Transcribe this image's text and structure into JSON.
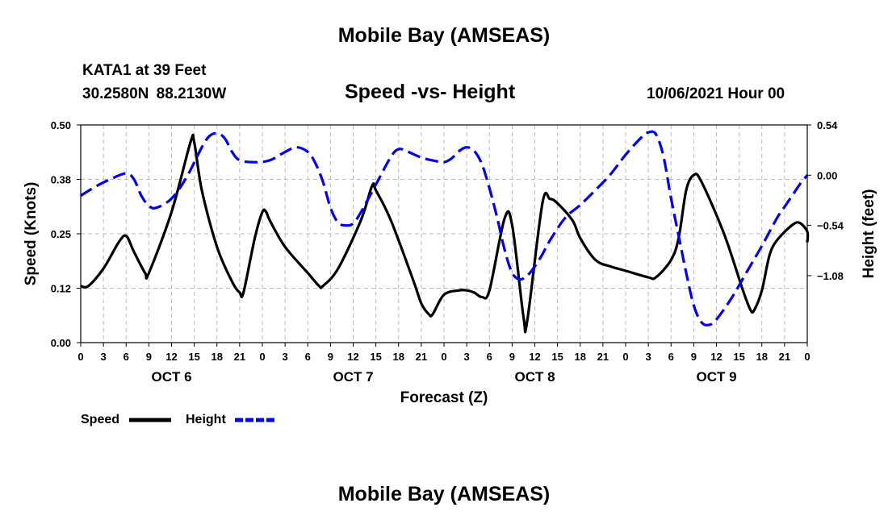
{
  "page": {
    "title_top": "Mobile Bay (AMSEAS)",
    "title_bottom": "Mobile Bay (AMSEAS)",
    "station": "KATA1 at 39 Feet",
    "coords": "30.2580N  88.2130W",
    "run_time": "10/06/2021 Hour 00"
  },
  "chart_data": {
    "type": "line",
    "title": "Speed -vs- Height",
    "xlabel": "Forecast (Z)",
    "ylabel_left": "Speed (Knots)",
    "ylabel_right": "Height (feet)",
    "x_range": [
      0,
      96
    ],
    "ylim_left": [
      0.0,
      0.5
    ],
    "ylim_right": [
      -1.8,
      0.54
    ],
    "left_ticks": [
      "0.00",
      "0.12",
      "0.25",
      "0.38",
      "0.50"
    ],
    "right_ticks": [
      "0.54",
      "0.00",
      "−0.54",
      "−1.08"
    ],
    "right_tick_values": [
      0.54,
      0.0,
      -0.54,
      -1.08
    ],
    "x_tick_labels": [
      "0",
      "3",
      "6",
      "9",
      "12",
      "15",
      "18",
      "21",
      "0",
      "3",
      "6",
      "9",
      "12",
      "15",
      "18",
      "21",
      "0",
      "3",
      "6",
      "9",
      "12",
      "15",
      "18",
      "21",
      "0",
      "3",
      "6",
      "9",
      "12",
      "15",
      "18",
      "21",
      "0"
    ],
    "day_labels": [
      {
        "text": "OCT 6",
        "x": 12
      },
      {
        "text": "OCT 7",
        "x": 36
      },
      {
        "text": "OCT 8",
        "x": 60
      },
      {
        "text": "OCT 9",
        "x": 84
      }
    ],
    "grid": true,
    "legend_position": "bottom-left",
    "series": [
      {
        "name": "Speed",
        "axis": "left",
        "color": "#000000",
        "style": "solid",
        "points": [
          [
            0,
            0.13
          ],
          [
            1,
            0.13
          ],
          [
            3,
            0.17
          ],
          [
            5,
            0.23
          ],
          [
            6,
            0.245
          ],
          [
            7,
            0.21
          ],
          [
            8.5,
            0.16
          ],
          [
            9,
            0.16
          ],
          [
            12,
            0.3
          ],
          [
            14.5,
            0.46
          ],
          [
            15,
            0.46
          ],
          [
            16,
            0.35
          ],
          [
            18,
            0.22
          ],
          [
            20,
            0.14
          ],
          [
            21,
            0.115
          ],
          [
            21.5,
            0.115
          ],
          [
            23,
            0.24
          ],
          [
            24,
            0.3
          ],
          [
            24.5,
            0.3
          ],
          [
            25,
            0.28
          ],
          [
            27,
            0.22
          ],
          [
            30,
            0.16
          ],
          [
            31.5,
            0.13
          ],
          [
            32,
            0.13
          ],
          [
            34,
            0.17
          ],
          [
            37,
            0.28
          ],
          [
            38.5,
            0.36
          ],
          [
            39,
            0.35
          ],
          [
            41,
            0.28
          ],
          [
            44,
            0.14
          ],
          [
            45,
            0.09
          ],
          [
            46,
            0.065
          ],
          [
            46.5,
            0.065
          ],
          [
            48,
            0.11
          ],
          [
            50,
            0.12
          ],
          [
            51,
            0.12
          ],
          [
            52,
            0.115
          ],
          [
            53,
            0.105
          ],
          [
            54,
            0.12
          ],
          [
            56,
            0.285
          ],
          [
            57,
            0.27
          ],
          [
            58.5,
            0.06
          ],
          [
            59,
            0.05
          ],
          [
            61,
            0.32
          ],
          [
            62,
            0.33
          ],
          [
            63,
            0.32
          ],
          [
            65,
            0.28
          ],
          [
            66,
            0.24
          ],
          [
            68,
            0.19
          ],
          [
            70,
            0.175
          ],
          [
            72,
            0.165
          ],
          [
            75,
            0.15
          ],
          [
            76,
            0.15
          ],
          [
            78,
            0.19
          ],
          [
            79,
            0.24
          ],
          [
            80,
            0.35
          ],
          [
            81,
            0.385
          ],
          [
            82,
            0.37
          ],
          [
            85,
            0.25
          ],
          [
            87.5,
            0.12
          ],
          [
            88.5,
            0.075
          ],
          [
            89,
            0.075
          ],
          [
            90,
            0.12
          ],
          [
            91,
            0.2
          ],
          [
            92,
            0.235
          ],
          [
            94,
            0.27
          ],
          [
            95,
            0.275
          ],
          [
            96,
            0.255
          ],
          [
            96.5,
            0.23
          ]
        ]
      },
      {
        "name": "Height",
        "axis": "right",
        "color": "#0000ff",
        "style": "dashed",
        "points": [
          [
            0,
            -0.22
          ],
          [
            2,
            -0.12
          ],
          [
            4,
            -0.04
          ],
          [
            6,
            0.02
          ],
          [
            7,
            -0.04
          ],
          [
            8,
            -0.22
          ],
          [
            9,
            -0.33
          ],
          [
            10,
            -0.35
          ],
          [
            12,
            -0.25
          ],
          [
            14,
            -0.02
          ],
          [
            16,
            0.3
          ],
          [
            17,
            0.42
          ],
          [
            18,
            0.45
          ],
          [
            19,
            0.4
          ],
          [
            20,
            0.25
          ],
          [
            21,
            0.16
          ],
          [
            23,
            0.14
          ],
          [
            25,
            0.16
          ],
          [
            27,
            0.25
          ],
          [
            28.5,
            0.3
          ],
          [
            30,
            0.25
          ],
          [
            31,
            0.13
          ],
          [
            32,
            -0.07
          ],
          [
            33,
            -0.35
          ],
          [
            34,
            -0.51
          ],
          [
            35,
            -0.54
          ],
          [
            36,
            -0.52
          ],
          [
            37,
            -0.4
          ],
          [
            39,
            -0.1
          ],
          [
            41,
            0.2
          ],
          [
            42,
            0.28
          ],
          [
            43,
            0.26
          ],
          [
            45,
            0.19
          ],
          [
            47,
            0.15
          ],
          [
            48,
            0.14
          ],
          [
            49,
            0.18
          ],
          [
            50,
            0.26
          ],
          [
            51,
            0.3
          ],
          [
            52,
            0.26
          ],
          [
            53,
            0.12
          ],
          [
            54,
            -0.14
          ],
          [
            55,
            -0.45
          ],
          [
            56,
            -0.8
          ],
          [
            57,
            -1.05
          ],
          [
            58,
            -1.12
          ],
          [
            59,
            -1.08
          ],
          [
            60,
            -0.98
          ],
          [
            61,
            -0.85
          ],
          [
            62,
            -0.7
          ],
          [
            64,
            -0.46
          ],
          [
            66,
            -0.32
          ],
          [
            68,
            -0.16
          ],
          [
            70,
            0.01
          ],
          [
            72,
            0.22
          ],
          [
            74,
            0.4
          ],
          [
            75,
            0.46
          ],
          [
            76,
            0.44
          ],
          [
            77,
            0.2
          ],
          [
            78,
            -0.25
          ],
          [
            79,
            -0.65
          ],
          [
            80,
            -1.05
          ],
          [
            81,
            -1.4
          ],
          [
            82,
            -1.58
          ],
          [
            83,
            -1.61
          ],
          [
            84,
            -1.55
          ],
          [
            86,
            -1.32
          ],
          [
            88,
            -1.04
          ],
          [
            90,
            -0.76
          ],
          [
            92,
            -0.46
          ],
          [
            93,
            -0.34
          ],
          [
            94,
            -0.22
          ],
          [
            95,
            -0.1
          ],
          [
            96,
            0.0
          ]
        ]
      }
    ]
  }
}
